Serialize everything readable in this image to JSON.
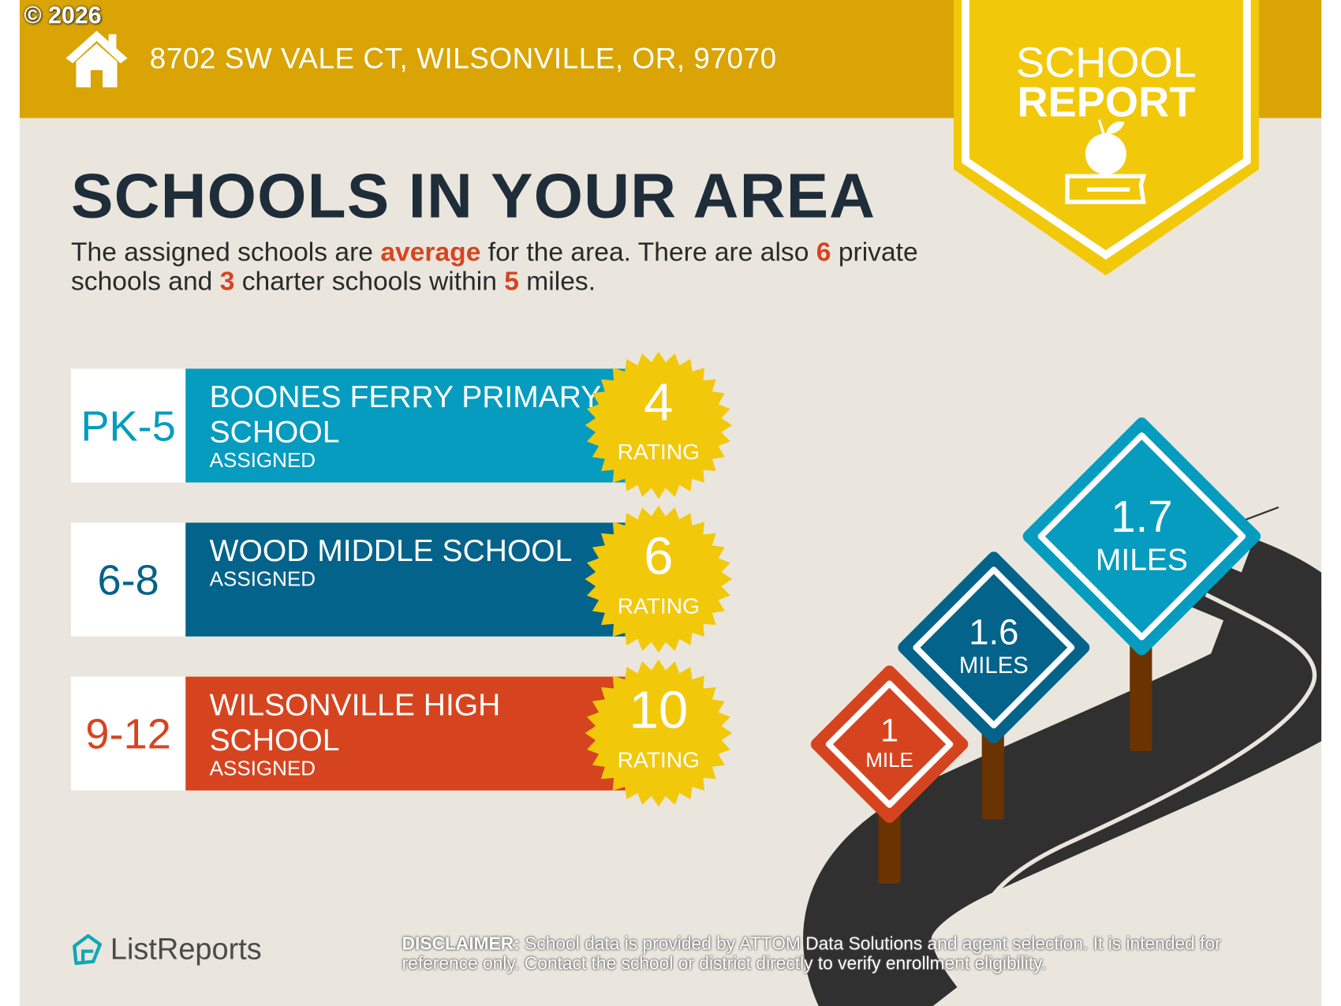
{
  "header": {
    "copyright": "© 2026",
    "address": "8702 SW VALE CT, WILSONVILLE, OR, 97070",
    "badge_line1": "SCHOOL",
    "badge_line2": "REPORT",
    "icons": [
      "house-icon",
      "apple-book-icon"
    ]
  },
  "main": {
    "title": "SCHOOLS IN YOUR AREA",
    "summary": {
      "p1": "The assigned schools are ",
      "quality": "average",
      "p2": " for the area. There are also ",
      "private_count": "6",
      "p3": " private schools and ",
      "charter_count": "3",
      "p4": " charter schools within ",
      "radius": "5",
      "p5": " miles."
    },
    "schools": [
      {
        "grades": "PK-5",
        "name": "BOONES FERRY PRIMARY SCHOOL",
        "status": "ASSIGNED",
        "rating": "4",
        "rating_label": "RATING",
        "color": "#059CC0"
      },
      {
        "grades": "6-8",
        "name": "WOOD MIDDLE SCHOOL",
        "status": "ASSIGNED",
        "rating": "6",
        "rating_label": "RATING",
        "color": "#03638A"
      },
      {
        "grades": "9-12",
        "name": "WILSONVILLE HIGH SCHOOL",
        "status": "ASSIGNED",
        "rating": "10",
        "rating_label": "RATING",
        "color": "#D6441F"
      }
    ]
  },
  "signs": [
    {
      "value": "1",
      "unit": "MILE",
      "color": "#D6441F"
    },
    {
      "value": "1.6",
      "unit": "MILES",
      "color": "#03638A"
    },
    {
      "value": "1.7",
      "unit": "MILES",
      "color": "#059CC0"
    }
  ],
  "footer": {
    "brand": "ListReports",
    "disclaimer_label": "DISCLAIMER:",
    "disclaimer_text": " School data is provided by ATTOM Data Solutions and agent selection. It is intended for reference only. Contact the school or district directly to verify enrollment eligibility."
  },
  "colors": {
    "header": "#D9A404",
    "badge": "#F2C80A",
    "background": "#EAE6DD",
    "highlight": "#D6441F",
    "title": "#1F2D3A",
    "seal": "#F2C80A",
    "post": "#6B3300",
    "road": "#303030"
  }
}
